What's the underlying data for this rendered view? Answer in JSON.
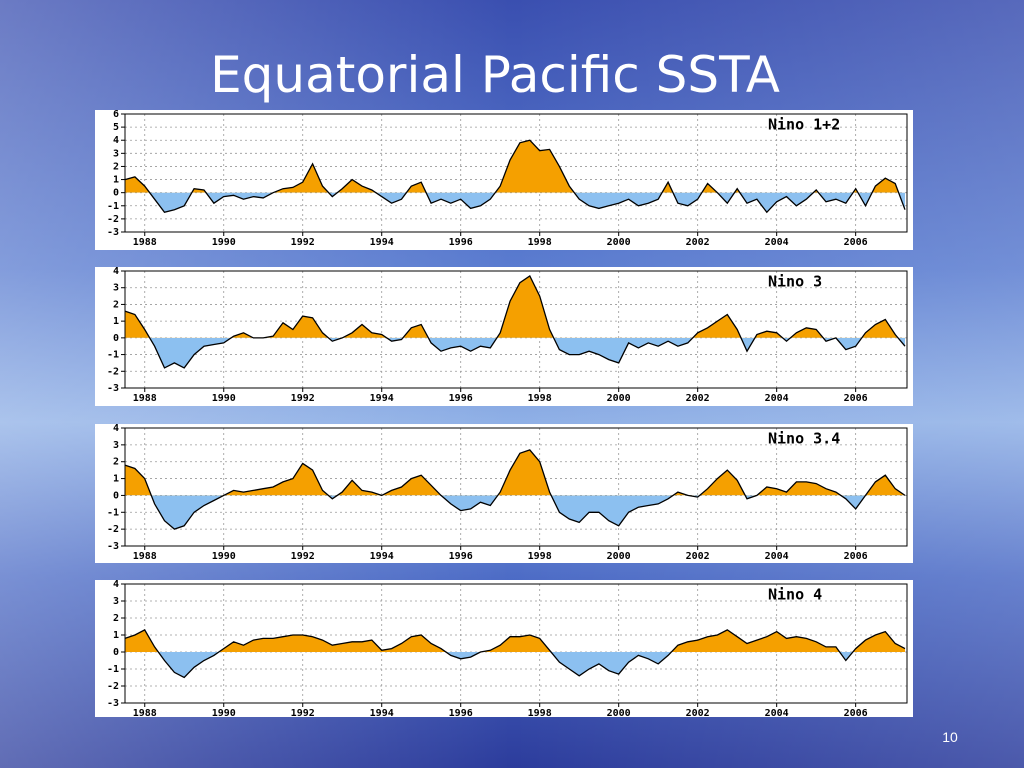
{
  "title": "Equatorial Pacific SSTA",
  "page_number": "10",
  "chart_data": [
    {
      "type": "area",
      "title": "Nino 1+2",
      "x": [
        1987.5,
        1987.75,
        1988,
        1988.25,
        1988.5,
        1988.75,
        1989,
        1989.25,
        1989.5,
        1989.75,
        1990,
        1990.25,
        1990.5,
        1990.75,
        1991,
        1991.25,
        1991.5,
        1991.75,
        1992,
        1992.25,
        1992.5,
        1992.75,
        1993,
        1993.25,
        1993.5,
        1993.75,
        1994,
        1994.25,
        1994.5,
        1994.75,
        1995,
        1995.25,
        1995.5,
        1995.75,
        1996,
        1996.25,
        1996.5,
        1996.75,
        1997,
        1997.25,
        1997.5,
        1997.75,
        1998,
        1998.25,
        1998.5,
        1998.75,
        1999,
        1999.25,
        1999.5,
        1999.75,
        2000,
        2000.25,
        2000.5,
        2000.75,
        2001,
        2001.25,
        2001.5,
        2001.75,
        2002,
        2002.25,
        2002.5,
        2002.75,
        2003,
        2003.25,
        2003.5,
        2003.75,
        2004,
        2004.25,
        2004.5,
        2004.75,
        2005,
        2005.25,
        2005.5,
        2005.75,
        2006,
        2006.25,
        2006.5,
        2006.75,
        2007,
        2007.25
      ],
      "values": [
        1.0,
        1.2,
        0.5,
        -0.5,
        -1.5,
        -1.3,
        -1.0,
        0.3,
        0.2,
        -0.8,
        -0.3,
        -0.2,
        -0.5,
        -0.3,
        -0.4,
        0.0,
        0.3,
        0.4,
        0.8,
        2.2,
        0.5,
        -0.3,
        0.3,
        1.0,
        0.5,
        0.2,
        -0.3,
        -0.8,
        -0.5,
        0.5,
        0.8,
        -0.8,
        -0.5,
        -0.8,
        -0.5,
        -1.2,
        -1.0,
        -0.5,
        0.5,
        2.5,
        3.8,
        4.0,
        3.2,
        3.3,
        2.0,
        0.5,
        -0.5,
        -1.0,
        -1.2,
        -1.0,
        -0.8,
        -0.5,
        -1.0,
        -0.8,
        -0.5,
        0.8,
        -0.8,
        -1.0,
        -0.5,
        0.7,
        0.0,
        -0.8,
        0.3,
        -0.8,
        -0.5,
        -1.5,
        -0.7,
        -0.3,
        -1.0,
        -0.5,
        0.2,
        -0.7,
        -0.5,
        -0.8,
        0.3,
        -1.0,
        0.5,
        1.1,
        0.7,
        -1.3
      ],
      "xlim": [
        1987.5,
        2007.3
      ],
      "xticks": [
        1988,
        1990,
        1992,
        1994,
        1996,
        1998,
        2000,
        2002,
        2004,
        2006
      ],
      "ylim": [
        -3,
        6
      ],
      "yticks": [
        -3,
        -2,
        -1,
        0,
        1,
        2,
        3,
        4,
        5,
        6
      ],
      "grid": true,
      "above_color": "#f5a000",
      "below_color": "#8cc0f0",
      "line_color": "#000000"
    },
    {
      "type": "area",
      "title": "Nino 3",
      "x": [
        1987.5,
        1987.75,
        1988,
        1988.25,
        1988.5,
        1988.75,
        1989,
        1989.25,
        1989.5,
        1989.75,
        1990,
        1990.25,
        1990.5,
        1990.75,
        1991,
        1991.25,
        1991.5,
        1991.75,
        1992,
        1992.25,
        1992.5,
        1992.75,
        1993,
        1993.25,
        1993.5,
        1993.75,
        1994,
        1994.25,
        1994.5,
        1994.75,
        1995,
        1995.25,
        1995.5,
        1995.75,
        1996,
        1996.25,
        1996.5,
        1996.75,
        1997,
        1997.25,
        1997.5,
        1997.75,
        1998,
        1998.25,
        1998.5,
        1998.75,
        1999,
        1999.25,
        1999.5,
        1999.75,
        2000,
        2000.25,
        2000.5,
        2000.75,
        2001,
        2001.25,
        2001.5,
        2001.75,
        2002,
        2002.25,
        2002.5,
        2002.75,
        2003,
        2003.25,
        2003.5,
        2003.75,
        2004,
        2004.25,
        2004.5,
        2004.75,
        2005,
        2005.25,
        2005.5,
        2005.75,
        2006,
        2006.25,
        2006.5,
        2006.75,
        2007,
        2007.25
      ],
      "values": [
        1.6,
        1.4,
        0.5,
        -0.5,
        -1.8,
        -1.5,
        -1.8,
        -1.0,
        -0.5,
        -0.4,
        -0.3,
        0.1,
        0.3,
        0.0,
        0.0,
        0.1,
        0.9,
        0.5,
        1.3,
        1.2,
        0.3,
        -0.2,
        0.0,
        0.3,
        0.8,
        0.3,
        0.2,
        -0.2,
        -0.1,
        0.6,
        0.8,
        -0.3,
        -0.8,
        -0.6,
        -0.5,
        -0.8,
        -0.5,
        -0.6,
        0.3,
        2.2,
        3.3,
        3.7,
        2.5,
        0.5,
        -0.7,
        -1.0,
        -1.0,
        -0.8,
        -1.0,
        -1.3,
        -1.5,
        -0.3,
        -0.6,
        -0.3,
        -0.5,
        -0.2,
        -0.5,
        -0.3,
        0.3,
        0.6,
        1.0,
        1.4,
        0.5,
        -0.8,
        0.2,
        0.4,
        0.3,
        -0.2,
        0.3,
        0.6,
        0.5,
        -0.2,
        0.0,
        -0.7,
        -0.5,
        0.3,
        0.8,
        1.1,
        0.2,
        -0.5
      ],
      "xlim": [
        1987.5,
        2007.3
      ],
      "xticks": [
        1988,
        1990,
        1992,
        1994,
        1996,
        1998,
        2000,
        2002,
        2004,
        2006
      ],
      "ylim": [
        -3,
        4
      ],
      "yticks": [
        -3,
        -2,
        -1,
        0,
        1,
        2,
        3,
        4
      ],
      "grid": true,
      "above_color": "#f5a000",
      "below_color": "#8cc0f0",
      "line_color": "#000000"
    },
    {
      "type": "area",
      "title": "Nino 3.4",
      "x": [
        1987.5,
        1987.75,
        1988,
        1988.25,
        1988.5,
        1988.75,
        1989,
        1989.25,
        1989.5,
        1989.75,
        1990,
        1990.25,
        1990.5,
        1990.75,
        1991,
        1991.25,
        1991.5,
        1991.75,
        1992,
        1992.25,
        1992.5,
        1992.75,
        1993,
        1993.25,
        1993.5,
        1993.75,
        1994,
        1994.25,
        1994.5,
        1994.75,
        1995,
        1995.25,
        1995.5,
        1995.75,
        1996,
        1996.25,
        1996.5,
        1996.75,
        1997,
        1997.25,
        1997.5,
        1997.75,
        1998,
        1998.25,
        1998.5,
        1998.75,
        1999,
        1999.25,
        1999.5,
        1999.75,
        2000,
        2000.25,
        2000.5,
        2000.75,
        2001,
        2001.25,
        2001.5,
        2001.75,
        2002,
        2002.25,
        2002.5,
        2002.75,
        2003,
        2003.25,
        2003.5,
        2003.75,
        2004,
        2004.25,
        2004.5,
        2004.75,
        2005,
        2005.25,
        2005.5,
        2005.75,
        2006,
        2006.25,
        2006.5,
        2006.75,
        2007,
        2007.25
      ],
      "values": [
        1.8,
        1.6,
        1.0,
        -0.5,
        -1.5,
        -2.0,
        -1.8,
        -1.0,
        -0.6,
        -0.3,
        0.0,
        0.3,
        0.2,
        0.3,
        0.4,
        0.5,
        0.8,
        1.0,
        1.9,
        1.5,
        0.3,
        -0.2,
        0.2,
        0.9,
        0.3,
        0.2,
        0.0,
        0.3,
        0.5,
        1.0,
        1.2,
        0.6,
        0.0,
        -0.5,
        -0.9,
        -0.8,
        -0.4,
        -0.6,
        0.2,
        1.5,
        2.5,
        2.7,
        2.0,
        0.2,
        -1.0,
        -1.4,
        -1.6,
        -1.0,
        -1.0,
        -1.5,
        -1.8,
        -1.0,
        -0.7,
        -0.6,
        -0.5,
        -0.2,
        0.2,
        0.0,
        -0.1,
        0.4,
        1.0,
        1.5,
        0.9,
        -0.2,
        0.0,
        0.5,
        0.4,
        0.2,
        0.8,
        0.8,
        0.7,
        0.4,
        0.2,
        -0.2,
        -0.8,
        0.0,
        0.8,
        1.2,
        0.4,
        0.0
      ],
      "xlim": [
        1987.5,
        2007.3
      ],
      "xticks": [
        1988,
        1990,
        1992,
        1994,
        1996,
        1998,
        2000,
        2002,
        2004,
        2006
      ],
      "ylim": [
        -3,
        4
      ],
      "yticks": [
        -3,
        -2,
        -1,
        0,
        1,
        2,
        3,
        4
      ],
      "grid": true,
      "above_color": "#f5a000",
      "below_color": "#8cc0f0",
      "line_color": "#000000"
    },
    {
      "type": "area",
      "title": "Nino 4",
      "x": [
        1987.5,
        1987.75,
        1988,
        1988.25,
        1988.5,
        1988.75,
        1989,
        1989.25,
        1989.5,
        1989.75,
        1990,
        1990.25,
        1990.5,
        1990.75,
        1991,
        1991.25,
        1991.5,
        1991.75,
        1992,
        1992.25,
        1992.5,
        1992.75,
        1993,
        1993.25,
        1993.5,
        1993.75,
        1994,
        1994.25,
        1994.5,
        1994.75,
        1995,
        1995.25,
        1995.5,
        1995.75,
        1996,
        1996.25,
        1996.5,
        1996.75,
        1997,
        1997.25,
        1997.5,
        1997.75,
        1998,
        1998.25,
        1998.5,
        1998.75,
        1999,
        1999.25,
        1999.5,
        1999.75,
        2000,
        2000.25,
        2000.5,
        2000.75,
        2001,
        2001.25,
        2001.5,
        2001.75,
        2002,
        2002.25,
        2002.5,
        2002.75,
        2003,
        2003.25,
        2003.5,
        2003.75,
        2004,
        2004.25,
        2004.5,
        2004.75,
        2005,
        2005.25,
        2005.5,
        2005.75,
        2006,
        2006.25,
        2006.5,
        2006.75,
        2007,
        2007.25
      ],
      "values": [
        0.8,
        1.0,
        1.3,
        0.3,
        -0.5,
        -1.2,
        -1.5,
        -0.9,
        -0.5,
        -0.2,
        0.2,
        0.6,
        0.4,
        0.7,
        0.8,
        0.8,
        0.9,
        1.0,
        1.0,
        0.9,
        0.7,
        0.4,
        0.5,
        0.6,
        0.6,
        0.7,
        0.1,
        0.2,
        0.5,
        0.9,
        1.0,
        0.5,
        0.2,
        -0.2,
        -0.4,
        -0.3,
        0.0,
        0.1,
        0.4,
        0.9,
        0.9,
        1.0,
        0.8,
        0.1,
        -0.6,
        -1.0,
        -1.4,
        -1.0,
        -0.7,
        -1.1,
        -1.3,
        -0.6,
        -0.2,
        -0.4,
        -0.7,
        -0.2,
        0.4,
        0.6,
        0.7,
        0.9,
        1.0,
        1.3,
        0.9,
        0.5,
        0.7,
        0.9,
        1.2,
        0.8,
        0.9,
        0.8,
        0.6,
        0.3,
        0.3,
        -0.5,
        0.2,
        0.7,
        1.0,
        1.2,
        0.5,
        0.2
      ],
      "xlim": [
        1987.5,
        2007.3
      ],
      "xticks": [
        1988,
        1990,
        1992,
        1994,
        1996,
        1998,
        2000,
        2002,
        2004,
        2006
      ],
      "ylim": [
        -3,
        4
      ],
      "yticks": [
        -3,
        -2,
        -1,
        0,
        1,
        2,
        3,
        4
      ],
      "grid": true,
      "above_color": "#f5a000",
      "below_color": "#8cc0f0",
      "line_color": "#000000"
    }
  ]
}
